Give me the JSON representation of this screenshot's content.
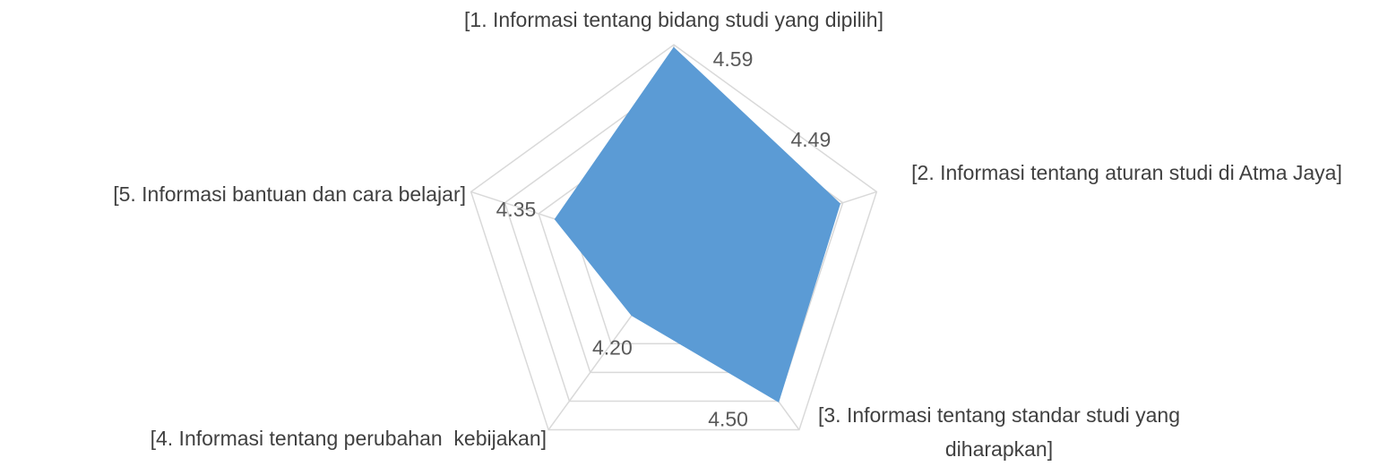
{
  "chart_data": {
    "type": "radar",
    "categories": [
      "[1. Informasi tentang bidang studi yang dipilih]",
      "[2. Informasi tentang aturan studi di Atma Jaya]",
      "[3. Informasi tentang standar studi yang diharapkan]",
      "[4. Informasi tentang perubahan  kebijakan]",
      "[5. Informasi bantuan dan cara belajar]"
    ],
    "values": [
      4.59,
      4.49,
      4.5,
      4.2,
      4.35
    ],
    "value_labels": [
      "4.59",
      "4.49",
      "4.50",
      "4.20",
      "4.35"
    ],
    "color": "#5b9bd5",
    "ylim": [
      4.0,
      4.6
    ],
    "yticks": [
      4.0,
      4.1,
      4.2,
      4.3,
      4.4,
      4.5,
      4.6
    ],
    "grid": true
  }
}
